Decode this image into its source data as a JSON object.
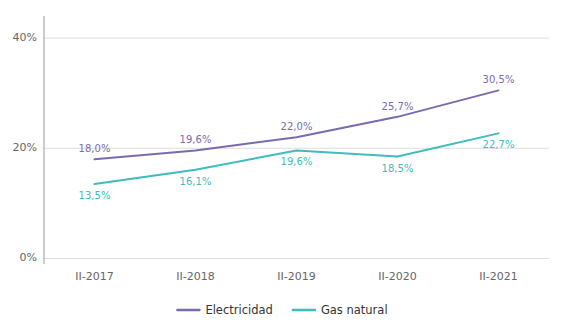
{
  "chart_data": {
    "type": "line",
    "categories": [
      "II-2017",
      "II-2018",
      "II-2019",
      "II-2020",
      "II-2021"
    ],
    "series": [
      {
        "name": "Electricidad",
        "color": "#7B6AAD",
        "values": [
          18.0,
          19.6,
          22.0,
          25.7,
          30.5
        ],
        "value_labels": [
          "18,0%",
          "19,6%",
          "22,0%",
          "25,7%",
          "30,5%"
        ]
      },
      {
        "name": "Gas natural",
        "color": "#3DBDBD",
        "values": [
          13.5,
          16.1,
          19.6,
          18.5,
          22.7
        ],
        "value_labels": [
          "13,5%",
          "16,1%",
          "19,6%",
          "18,5%",
          "22,7%"
        ]
      }
    ],
    "ylim": [
      -1,
      44
    ],
    "yticks": [
      {
        "value": 0,
        "label": "0%"
      },
      {
        "value": 20,
        "label": "20%"
      },
      {
        "value": 40,
        "label": "40%"
      }
    ],
    "grid": true,
    "legend": "bottom",
    "data_labels": true
  }
}
